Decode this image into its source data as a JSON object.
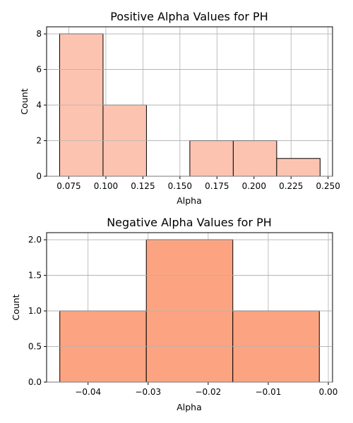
{
  "chart_data": [
    {
      "type": "bar",
      "title": "Positive Alpha Values for PH",
      "xlabel": "Alpha",
      "ylabel": "Count",
      "bin_edges": [
        0.0688,
        0.0981,
        0.1274,
        0.1567,
        0.186,
        0.2153,
        0.2446
      ],
      "values": [
        8,
        4,
        0,
        2,
        2,
        1
      ],
      "xlim": [
        0.06,
        0.253
      ],
      "ylim": [
        0,
        8.4
      ],
      "xticks": [
        0.075,
        0.1,
        0.125,
        0.15,
        0.175,
        0.2,
        0.225,
        0.25
      ],
      "xtick_labels": [
        "0.075",
        "0.100",
        "0.125",
        "0.150",
        "0.175",
        "0.200",
        "0.225",
        "0.250"
      ],
      "yticks": [
        0,
        2,
        4,
        6,
        8
      ],
      "ytick_labels": [
        "0",
        "2",
        "4",
        "6",
        "8"
      ],
      "grid": true,
      "color": "#fcc4b0"
    },
    {
      "type": "bar",
      "title": "Negative Alpha Values for PH",
      "xlabel": "Alpha",
      "ylabel": "Count",
      "bin_edges": [
        -0.0447,
        -0.0303,
        -0.0159,
        -0.0015
      ],
      "values": [
        1,
        2,
        1
      ],
      "xlim": [
        -0.0469,
        0.0007
      ],
      "ylim": [
        0,
        2.1
      ],
      "xticks": [
        -0.04,
        -0.03,
        -0.02,
        -0.01,
        0.0
      ],
      "xtick_labels": [
        "−0.04",
        "−0.03",
        "−0.02",
        "−0.01",
        "0.00"
      ],
      "yticks": [
        0,
        0.5,
        1.0,
        1.5,
        2.0
      ],
      "ytick_labels": [
        "0.0",
        "0.5",
        "1.0",
        "1.5",
        "2.0"
      ],
      "grid": true,
      "color": "#fca481"
    }
  ]
}
